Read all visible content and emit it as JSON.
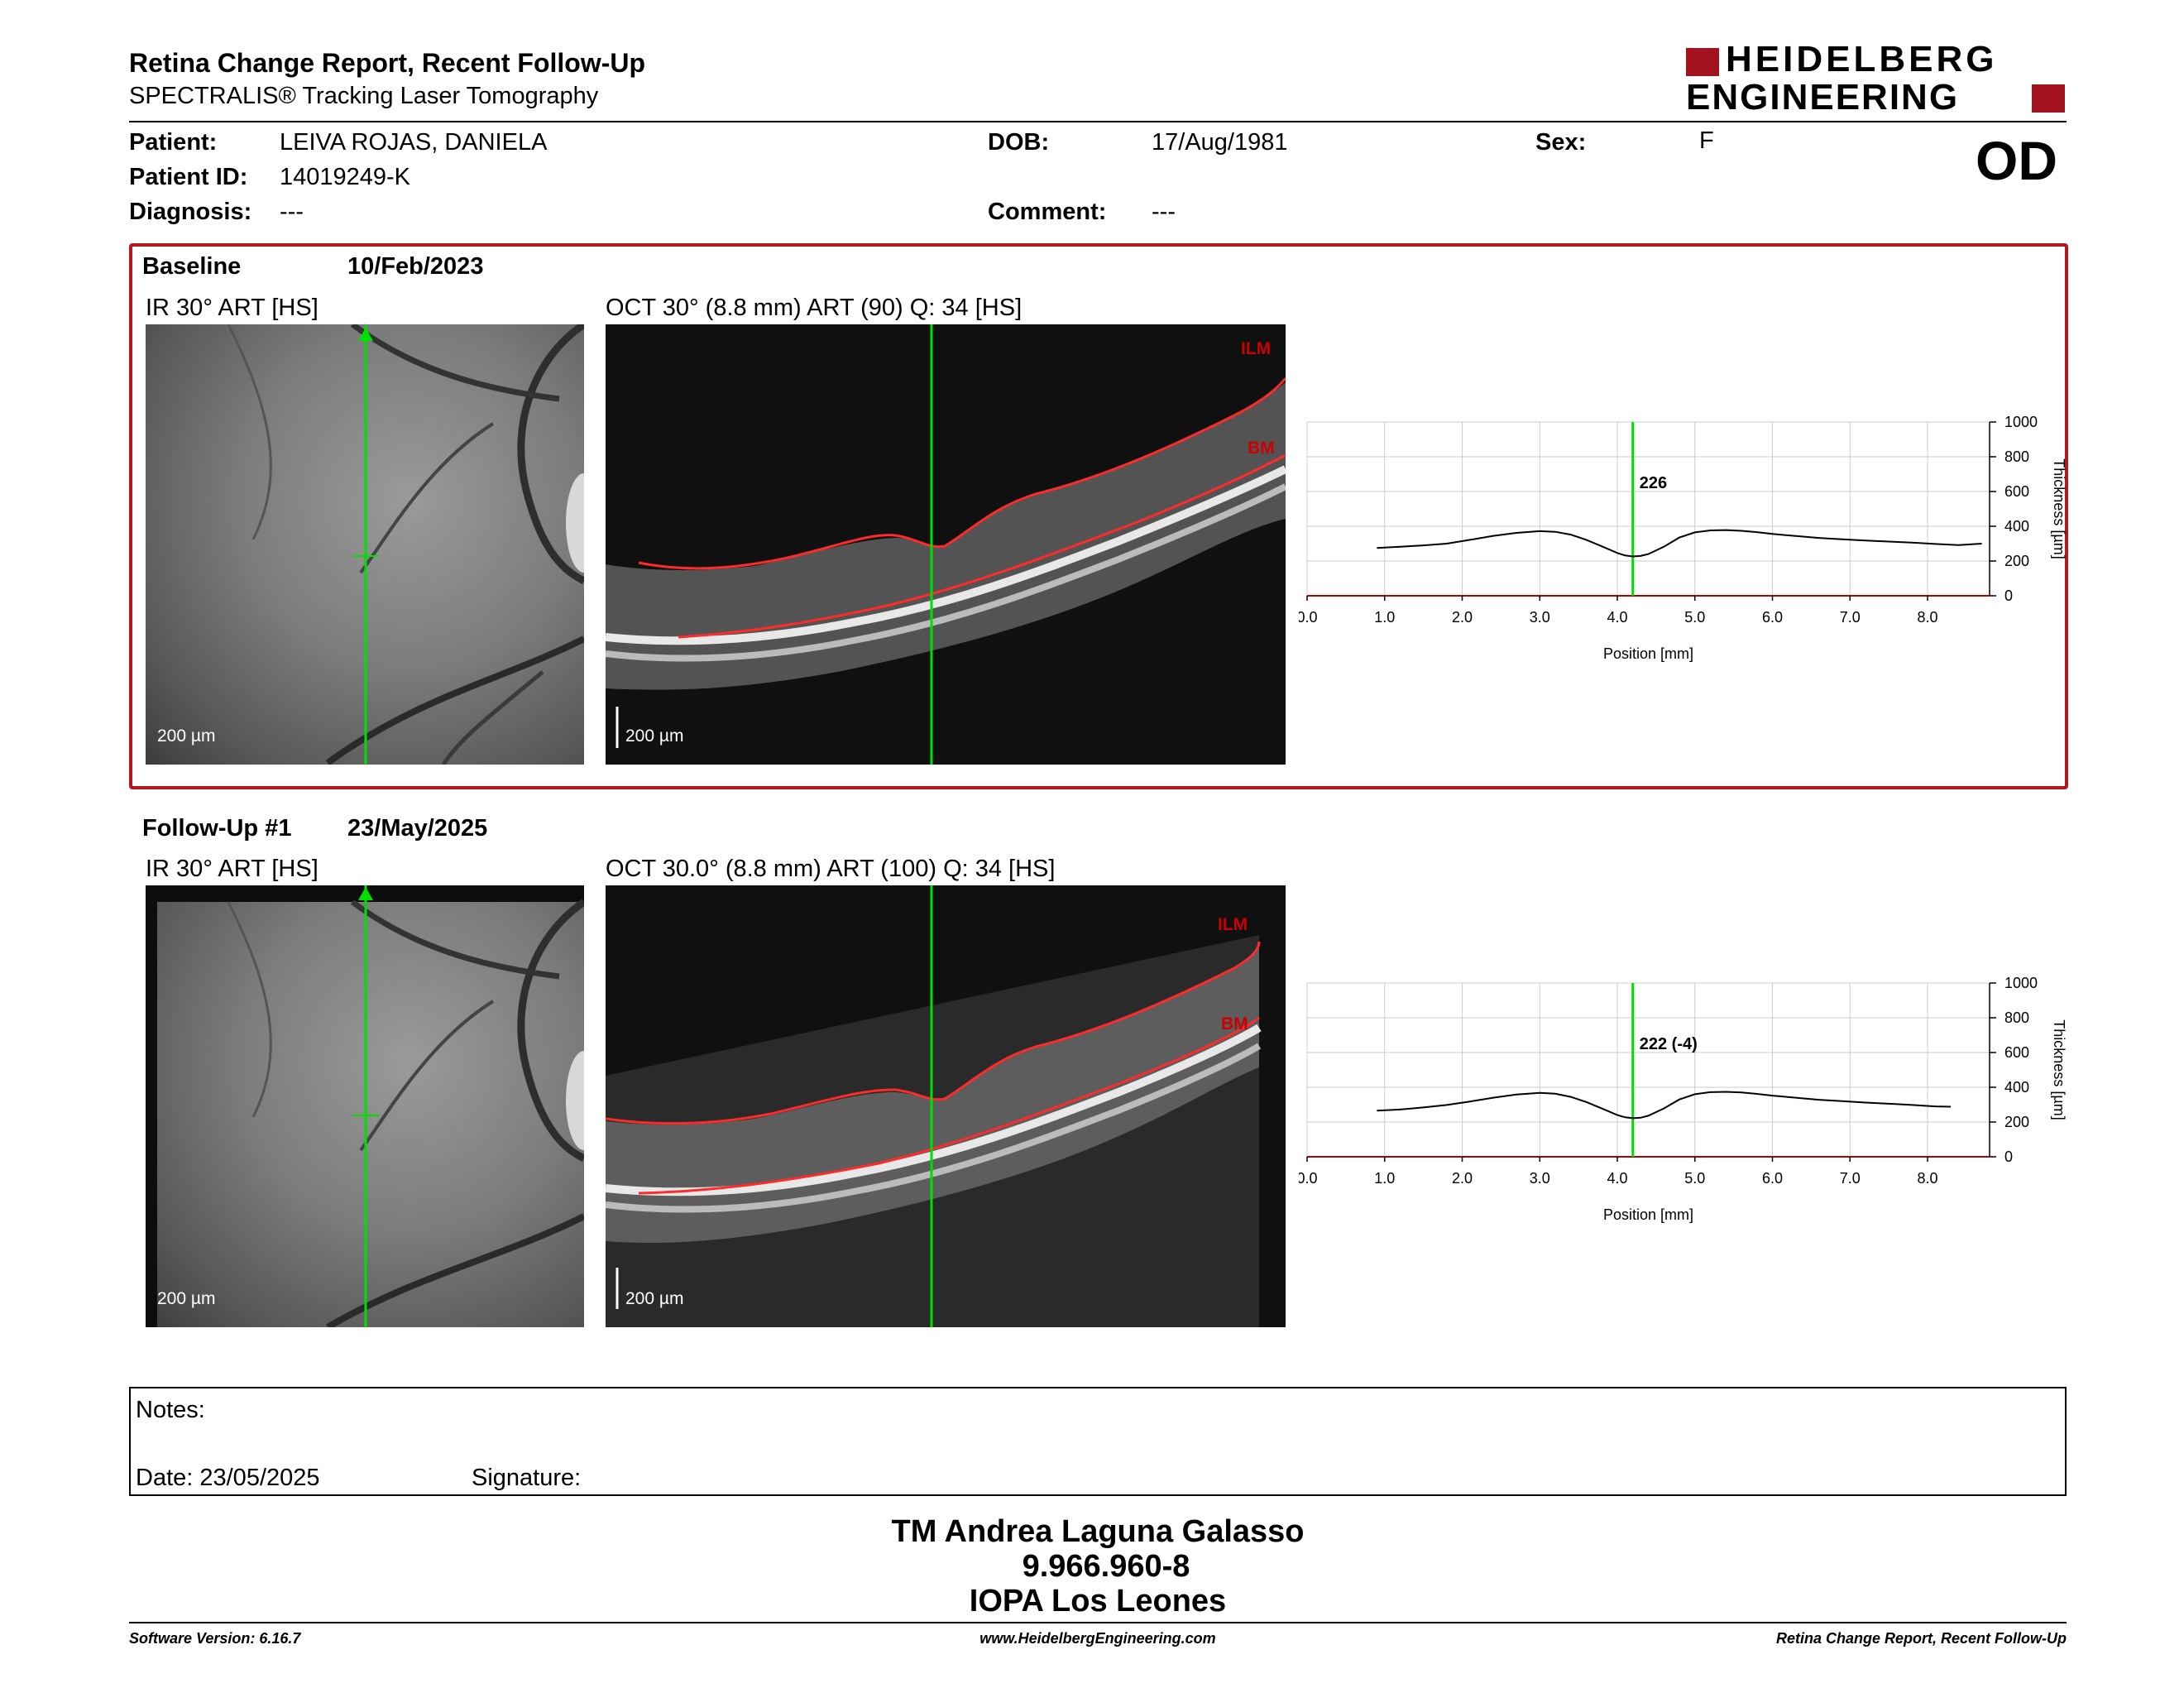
{
  "header": {
    "title": "Retina Change Report, Recent Follow-Up",
    "subtitle": "SPECTRALIS® Tracking Laser Tomography",
    "logo_line1": "HEIDELBERG",
    "logo_line2": "ENGINEERING",
    "eye": "OD"
  },
  "patient": {
    "patient_label": "Patient:",
    "patient_value": "LEIVA ROJAS, DANIELA",
    "id_label": "Patient ID:",
    "id_value": "14019249-K",
    "diag_label": "Diagnosis:",
    "diag_value": "---",
    "dob_label": "DOB:",
    "dob_value": "17/Aug/1981",
    "comment_label": "Comment:",
    "comment_value": "---",
    "sex_label": "Sex:",
    "sex_value": "F"
  },
  "baseline": {
    "label": "Baseline",
    "date": "10/Feb/2023",
    "ir_title": "IR 30° ART [HS]",
    "oct_title": "OCT 30° (8.8 mm) ART (90) Q: 34 [HS]",
    "ilm": "ILM",
    "bm": "BM",
    "scale_ir": "200 µm",
    "scale_oct": "200 µm"
  },
  "followup": {
    "label": "Follow-Up #1",
    "date": "23/May/2025",
    "ir_title": "IR 30° ART [HS]",
    "oct_title": "OCT 30.0° (8.8 mm) ART (100) Q: 34 [HS]",
    "ilm": "ILM",
    "bm": "BM",
    "scale_ir": "200 µm",
    "scale_oct": "200 µm"
  },
  "chart_data": [
    {
      "type": "line",
      "xlabel": "Position [mm]",
      "ylabel": "Thickness [µm]",
      "xlim": [
        0,
        8.8
      ],
      "ylim": [
        0,
        1000
      ],
      "xticks": [
        "0.0",
        "1.0",
        "2.0",
        "3.0",
        "4.0",
        "5.0",
        "6.0",
        "7.0",
        "8.0"
      ],
      "yticks": [
        "0",
        "200",
        "400",
        "600",
        "800",
        "1000"
      ],
      "cursor_x": 4.2,
      "cursor_label": "226",
      "colors": {
        "line": "#000000",
        "cursor": "#00dd00",
        "grid": "#cccccc",
        "baseline_axis": "#b30000"
      },
      "x": [
        0.9,
        1.2,
        1.5,
        1.8,
        2.1,
        2.4,
        2.7,
        3.0,
        3.2,
        3.4,
        3.6,
        3.8,
        4.0,
        4.1,
        4.2,
        4.3,
        4.4,
        4.6,
        4.8,
        5.0,
        5.2,
        5.4,
        5.6,
        5.8,
        6.0,
        6.3,
        6.6,
        6.9,
        7.2,
        7.5,
        7.8,
        8.1,
        8.4,
        8.7
      ],
      "y": [
        275,
        282,
        290,
        300,
        322,
        345,
        362,
        372,
        368,
        352,
        322,
        285,
        246,
        232,
        226,
        229,
        240,
        282,
        335,
        365,
        376,
        378,
        374,
        366,
        356,
        344,
        333,
        325,
        318,
        312,
        306,
        298,
        292,
        300
      ]
    },
    {
      "type": "line",
      "xlabel": "Position [mm]",
      "ylabel": "Thickness [µm]",
      "xlim": [
        0,
        8.8
      ],
      "ylim": [
        0,
        1000
      ],
      "xticks": [
        "0.0",
        "1.0",
        "2.0",
        "3.0",
        "4.0",
        "5.0",
        "6.0",
        "7.0",
        "8.0"
      ],
      "yticks": [
        "0",
        "200",
        "400",
        "600",
        "800",
        "1000"
      ],
      "cursor_x": 4.2,
      "cursor_label": "222 (-4)",
      "colors": {
        "line": "#000000",
        "cursor": "#00dd00",
        "grid": "#cccccc",
        "baseline_axis": "#b30000"
      },
      "x": [
        0.9,
        1.2,
        1.5,
        1.8,
        2.1,
        2.4,
        2.7,
        3.0,
        3.2,
        3.4,
        3.6,
        3.8,
        4.0,
        4.1,
        4.2,
        4.3,
        4.4,
        4.6,
        4.8,
        5.0,
        5.2,
        5.4,
        5.6,
        5.8,
        6.0,
        6.3,
        6.6,
        6.9,
        7.2,
        7.5,
        7.8,
        8.1,
        8.3
      ],
      "y": [
        265,
        272,
        284,
        298,
        318,
        340,
        358,
        368,
        363,
        345,
        315,
        278,
        240,
        227,
        222,
        225,
        236,
        278,
        330,
        360,
        372,
        374,
        370,
        362,
        352,
        340,
        328,
        320,
        312,
        305,
        298,
        290,
        288
      ]
    }
  ],
  "notes": {
    "label": "Notes:",
    "date": "Date: 23/05/2025",
    "signature": "Signature:"
  },
  "signer": {
    "name": "TM Andrea Laguna Galasso",
    "id": "9.966.960-8",
    "org": "IOPA Los Leones"
  },
  "footer": {
    "version": "Software Version: 6.16.7",
    "url": "www.HeidelbergEngineering.com",
    "report": "Retina Change Report, Recent Follow-Up"
  }
}
